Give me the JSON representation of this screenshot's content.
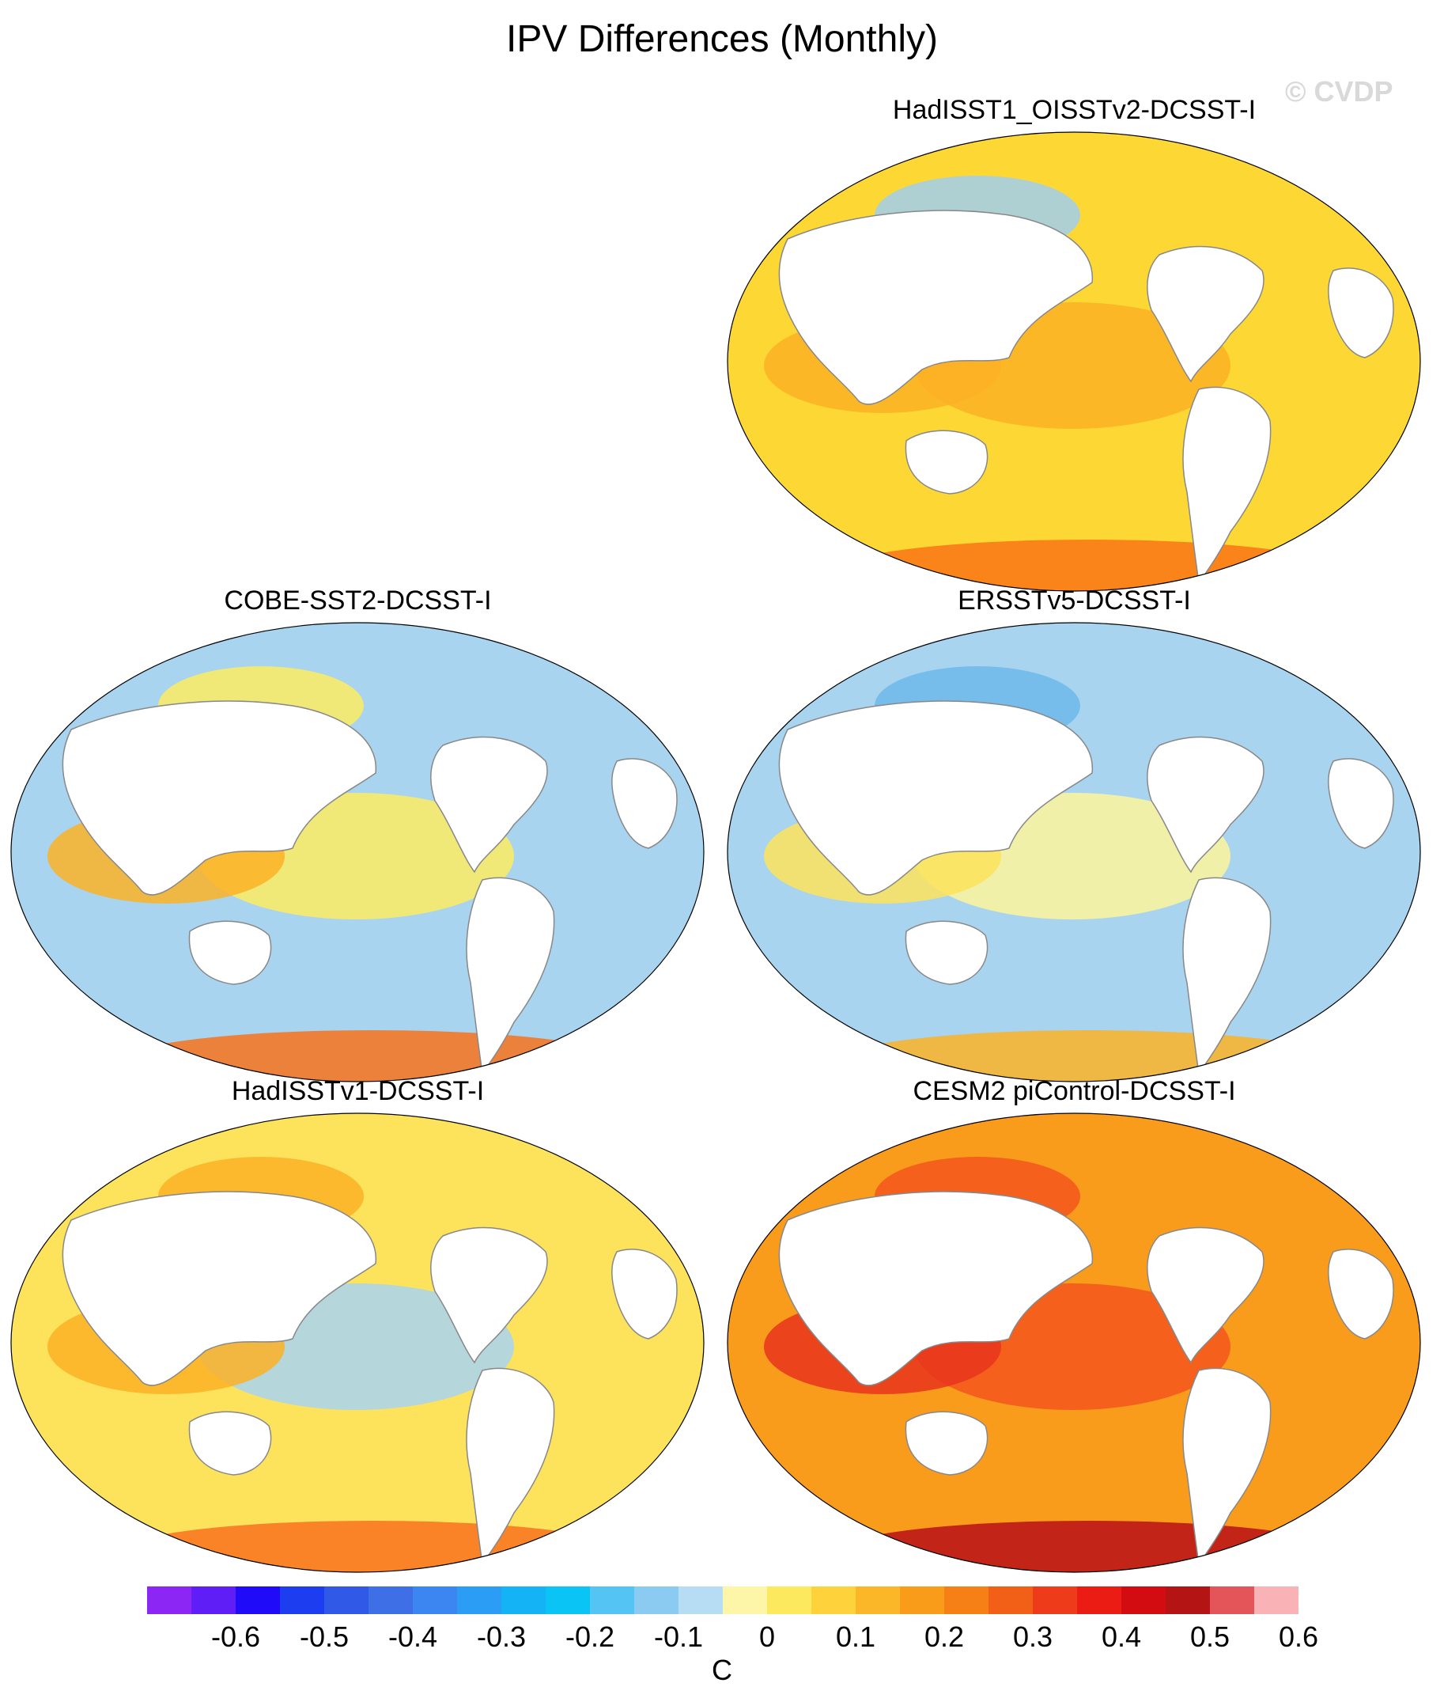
{
  "title": "IPV Differences (Monthly)",
  "watermark": "© CVDP",
  "panels": [
    {
      "label": "HadISST1_OISSTv2-DCSST-I",
      "fill": "#fdd835",
      "accents": [
        "#fbb124",
        "#fbb124",
        "#f97515",
        "#a0cfee"
      ]
    },
    {
      "label": "COBE-SST2-DCSST-I",
      "fill": "#a8d4f0",
      "accents": [
        "#fdeb62",
        "#fbb124",
        "#f8721c",
        "#fdeb62"
      ]
    },
    {
      "label": "ERSSTv5-DCSST-I",
      "fill": "#a8d4f0",
      "accents": [
        "#fdf49c",
        "#fde35c",
        "#fbb124",
        "#6fb8ea"
      ]
    },
    {
      "label": "HadISSTv1-DCSST-I",
      "fill": "#fde35c",
      "accents": [
        "#a8d4f0",
        "#fbb124",
        "#f8721c",
        "#fbb124"
      ]
    },
    {
      "label": "CESM2 piControl-DCSST-I",
      "fill": "#f99c1c",
      "accents": [
        "#f5561c",
        "#e9351d",
        "#b81017",
        "#f5561c"
      ]
    }
  ],
  "colorbar": {
    "unit": "C",
    "colors": [
      "#8b26f5",
      "#5f1ef6",
      "#1f0bf7",
      "#1c3ef0",
      "#3159e8",
      "#3e6fe6",
      "#3b86f0",
      "#2b9df4",
      "#14b3f6",
      "#0bc4f6",
      "#54c4f4",
      "#8ccbf1",
      "#b6ddf3",
      "#fdf6a9",
      "#fde95d",
      "#fdd23b",
      "#fbb727",
      "#f89c1a",
      "#f67f16",
      "#f25f17",
      "#ee3c1b",
      "#ea1c14",
      "#d30c12",
      "#b51414",
      "#e4555a",
      "#f9b2b6"
    ],
    "tick_labels": [
      "-0.6",
      "-0.5",
      "-0.4",
      "-0.3",
      "-0.2",
      "-0.1",
      "0",
      "0.1",
      "0.2",
      "0.3",
      "0.4",
      "0.5",
      "0.6"
    ]
  }
}
